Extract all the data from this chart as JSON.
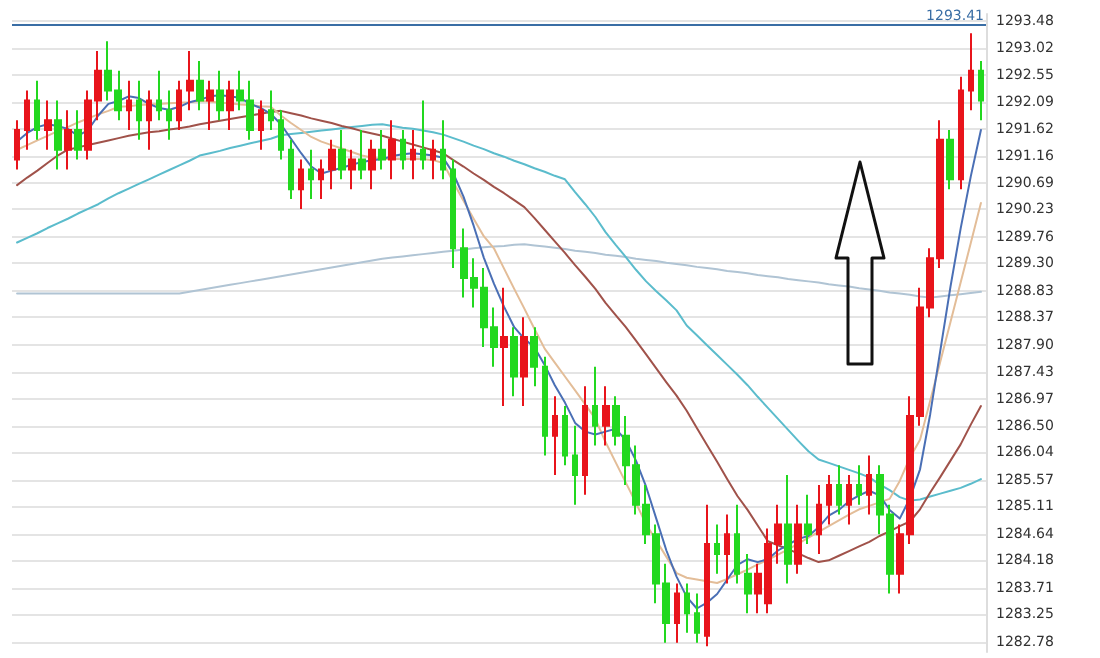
{
  "chart_data": {
    "type": "candlestick",
    "categories": [
      null,
      null,
      null,
      null,
      null,
      null,
      null,
      null,
      null,
      null,
      null,
      null,
      null,
      null,
      null,
      null,
      null,
      null,
      null,
      null,
      null,
      null,
      null,
      null,
      null,
      null,
      null,
      null,
      null,
      null,
      null,
      null,
      null,
      null,
      null,
      null,
      null,
      null,
      null,
      null,
      null,
      null,
      null,
      null,
      null,
      null,
      null,
      null,
      null,
      null,
      null,
      null,
      null,
      null,
      null,
      null,
      null,
      null,
      null,
      null,
      null,
      null,
      null,
      null,
      null,
      null,
      null,
      null,
      null,
      null,
      null,
      null,
      null,
      null,
      null,
      null,
      null,
      null,
      null,
      null,
      null,
      null,
      null,
      null,
      null,
      null,
      null,
      null,
      null,
      null,
      null,
      null,
      null,
      null,
      null,
      null
    ],
    "ylim": [
      1282.6,
      1293.6
    ],
    "yticks": [
      1282.78,
      1283.25,
      1283.71,
      1284.18,
      1284.64,
      1285.11,
      1285.57,
      1286.04,
      {
        "value": 1286.5,
        "label": "1286.50"
      },
      1286.97,
      1287.43,
      {
        "value": 1287.9,
        "label": "1287.90"
      },
      1288.37,
      1288.83,
      {
        "value": 1289.3,
        "label": "1289.30"
      },
      1289.76,
      1290.23,
      1290.69,
      1291.16,
      1291.62,
      1292.09,
      1292.55,
      1293.02,
      1293.48
    ],
    "grid": "y",
    "tick_labels": "y",
    "line_style": "solid",
    "ohlc": [
      [
        1291.09,
        1291.77,
        1290.92,
        1291.6
      ],
      [
        1291.6,
        1292.28,
        1291.26,
        1292.11
      ],
      [
        1292.11,
        1292.45,
        1291.43,
        1291.6
      ],
      [
        1291.6,
        1292.11,
        1291.26,
        1291.77
      ],
      [
        1291.77,
        1292.11,
        1290.92,
        1291.26
      ],
      [
        1291.26,
        1291.94,
        1290.92,
        1291.6
      ],
      [
        1291.6,
        1291.94,
        1291.09,
        1291.26
      ],
      [
        1291.26,
        1292.28,
        1291.09,
        1292.11
      ],
      [
        1292.11,
        1292.96,
        1291.77,
        1292.62
      ],
      [
        1292.62,
        1293.13,
        1292.11,
        1292.28
      ],
      [
        1292.28,
        1292.62,
        1291.77,
        1291.94
      ],
      [
        1291.94,
        1292.45,
        1291.6,
        1292.11
      ],
      [
        1292.11,
        1292.45,
        1291.43,
        1291.77
      ],
      [
        1291.77,
        1292.28,
        1291.26,
        1292.11
      ],
      [
        1292.11,
        1292.62,
        1291.77,
        1291.94
      ],
      [
        1291.94,
        1292.28,
        1291.43,
        1291.77
      ],
      [
        1291.77,
        1292.45,
        1291.6,
        1292.28
      ],
      [
        1292.28,
        1292.96,
        1291.94,
        1292.45
      ],
      [
        1292.45,
        1292.79,
        1291.94,
        1292.11
      ],
      [
        1292.11,
        1292.45,
        1291.6,
        1292.28
      ],
      [
        1292.28,
        1292.62,
        1291.77,
        1291.94
      ],
      [
        1291.94,
        1292.45,
        1291.6,
        1292.28
      ],
      [
        1292.28,
        1292.62,
        1291.94,
        1292.11
      ],
      [
        1292.11,
        1292.45,
        1291.43,
        1291.6
      ],
      [
        1291.6,
        1292.11,
        1291.26,
        1291.94
      ],
      [
        1291.94,
        1292.28,
        1291.6,
        1291.77
      ],
      [
        1291.77,
        1291.94,
        1291.09,
        1291.26
      ],
      [
        1291.26,
        1291.43,
        1290.41,
        1290.58
      ],
      [
        1290.58,
        1291.09,
        1290.24,
        1290.92
      ],
      [
        1290.92,
        1291.26,
        1290.41,
        1290.75
      ],
      [
        1290.75,
        1291.09,
        1290.41,
        1290.92
      ],
      [
        1290.92,
        1291.43,
        1290.58,
        1291.26
      ],
      [
        1291.26,
        1291.6,
        1290.75,
        1290.92
      ],
      [
        1290.92,
        1291.26,
        1290.58,
        1291.09
      ],
      [
        1291.09,
        1291.6,
        1290.75,
        1290.92
      ],
      [
        1290.92,
        1291.43,
        1290.58,
        1291.26
      ],
      [
        1291.26,
        1291.6,
        1290.92,
        1291.09
      ],
      [
        1291.09,
        1291.77,
        1290.75,
        1291.43
      ],
      [
        1291.43,
        1291.6,
        1290.92,
        1291.09
      ],
      [
        1291.09,
        1291.6,
        1290.75,
        1291.26
      ],
      [
        1291.26,
        1292.11,
        1290.92,
        1291.09
      ],
      [
        1291.09,
        1291.43,
        1290.75,
        1291.26
      ],
      [
        1291.26,
        1291.77,
        1290.75,
        1290.92
      ],
      [
        1290.92,
        1291.09,
        1289.22,
        1289.56
      ],
      [
        1289.56,
        1289.9,
        1288.71,
        1289.05
      ],
      [
        1289.05,
        1289.39,
        1288.54,
        1288.88
      ],
      [
        1288.88,
        1289.22,
        1287.86,
        1288.2
      ],
      [
        1288.2,
        1288.54,
        1287.52,
        1287.86
      ],
      [
        1287.86,
        1288.88,
        1286.84,
        1288.03
      ],
      [
        1288.03,
        1288.2,
        1287.01,
        1287.35
      ],
      [
        1287.35,
        1288.37,
        1286.84,
        1288.03
      ],
      [
        1288.03,
        1288.2,
        1287.18,
        1287.52
      ],
      [
        1287.52,
        1287.69,
        1285.99,
        1286.33
      ],
      [
        1286.33,
        1287.01,
        1285.65,
        1286.67
      ],
      [
        1286.67,
        1286.84,
        1285.82,
        1285.99
      ],
      [
        1285.99,
        1286.5,
        1285.14,
        1285.65
      ],
      [
        1285.65,
        1287.18,
        1285.31,
        1286.84
      ],
      [
        1286.84,
        1287.52,
        1286.16,
        1286.5
      ],
      [
        1286.5,
        1287.18,
        1286.16,
        1286.84
      ],
      [
        1286.84,
        1287.01,
        1286.16,
        1286.33
      ],
      [
        1286.33,
        1286.67,
        1285.48,
        1285.82
      ],
      [
        1285.82,
        1286.16,
        1284.97,
        1285.14
      ],
      [
        1285.14,
        1285.48,
        1284.46,
        1284.63
      ],
      [
        1284.63,
        1284.8,
        1283.44,
        1283.78
      ],
      [
        1283.78,
        1284.12,
        1282.76,
        1283.1
      ],
      [
        1283.1,
        1283.78,
        1282.76,
        1283.61
      ],
      [
        1283.61,
        1283.78,
        1282.93,
        1283.27
      ],
      [
        1283.27,
        1283.61,
        1282.76,
        1282.93
      ],
      [
        1282.88,
        1285.14,
        1282.7,
        1284.46
      ],
      [
        1284.46,
        1284.8,
        1283.95,
        1284.29
      ],
      [
        1284.29,
        1284.97,
        1283.78,
        1284.63
      ],
      [
        1284.63,
        1285.14,
        1283.78,
        1283.95
      ],
      [
        1283.95,
        1284.29,
        1283.27,
        1283.61
      ],
      [
        1283.61,
        1284.12,
        1283.27,
        1283.95
      ],
      [
        1283.44,
        1284.73,
        1283.27,
        1284.46
      ],
      [
        1284.46,
        1285.14,
        1284.12,
        1284.8
      ],
      [
        1284.8,
        1285.65,
        1283.78,
        1284.12
      ],
      [
        1284.12,
        1285.14,
        1283.95,
        1284.8
      ],
      [
        1284.8,
        1285.31,
        1284.46,
        1284.63
      ],
      [
        1284.63,
        1285.48,
        1284.29,
        1285.14
      ],
      [
        1285.14,
        1285.65,
        1284.8,
        1285.48
      ],
      [
        1285.48,
        1285.82,
        1284.97,
        1285.14
      ],
      [
        1285.14,
        1285.65,
        1284.8,
        1285.48
      ],
      [
        1285.48,
        1285.82,
        1285.14,
        1285.31
      ],
      [
        1285.31,
        1285.99,
        1284.97,
        1285.65
      ],
      [
        1285.65,
        1285.82,
        1284.63,
        1284.97
      ],
      [
        1284.97,
        1285.14,
        1283.61,
        1283.95
      ],
      [
        1283.95,
        1284.8,
        1283.61,
        1284.63
      ],
      [
        1284.63,
        1287.01,
        1284.46,
        1286.67
      ],
      [
        1286.67,
        1288.88,
        1286.5,
        1288.54
      ],
      [
        1288.54,
        1289.56,
        1288.37,
        1289.39
      ],
      [
        1289.39,
        1291.77,
        1289.22,
        1291.43
      ],
      [
        1291.43,
        1291.6,
        1290.58,
        1290.75
      ],
      [
        1290.75,
        1292.52,
        1290.58,
        1292.28
      ],
      [
        1292.28,
        1293.27,
        1291.94,
        1292.62
      ],
      [
        1292.62,
        1292.79,
        1291.77,
        1292.11
      ]
    ],
    "colors": [
      "#e8141b",
      "#e8141b",
      "#22d81f",
      "#e8141b",
      "#22d81f",
      "#e8141b",
      "#22d81f",
      "#e8141b",
      "#e8141b",
      "#22d81f",
      "#22d81f",
      "#e8141b",
      "#22d81f",
      "#e8141b",
      "#22d81f",
      "#22d81f",
      "#e8141b",
      "#e8141b",
      "#22d81f",
      "#e8141b",
      "#22d81f",
      "#e8141b",
      "#22d81f",
      "#22d81f",
      "#e8141b",
      "#22d81f",
      "#22d81f",
      "#22d81f",
      "#e8141b",
      "#22d81f",
      "#e8141b",
      "#e8141b",
      "#22d81f",
      "#e8141b",
      "#22d81f",
      "#e8141b",
      "#22d81f",
      "#e8141b",
      "#22d81f",
      "#e8141b",
      "#22d81f",
      "#e8141b",
      "#22d81f",
      "#22d81f",
      "#22d81f",
      "#22d81f",
      "#22d81f",
      "#22d81f",
      "#e8141b",
      "#22d81f",
      "#e8141b",
      "#22d81f",
      "#22d81f",
      "#e8141b",
      "#22d81f",
      "#22d81f",
      "#e8141b",
      "#22d81f",
      "#e8141b",
      "#22d81f",
      "#22d81f",
      "#22d81f",
      "#22d81f",
      "#22d81f",
      "#22d81f",
      "#e8141b",
      "#22d81f",
      "#22d81f",
      "#e8141b",
      "#22d81f",
      "#e8141b",
      "#22d81f",
      "#22d81f",
      "#e8141b",
      "#e8141b",
      "#e8141b",
      "#22d81f",
      "#e8141b",
      "#22d81f",
      "#e8141b",
      "#e8141b",
      "#22d81f",
      "#e8141b",
      "#22d81f",
      "#e8141b",
      "#22d81f",
      "#22d81f",
      "#e8141b",
      "#e8141b",
      "#e8141b",
      "#e8141b",
      "#e8141b",
      "#22d81f",
      "#e8141b",
      "#e8141b",
      "#22d81f"
    ],
    "series": [
      {
        "type": "line",
        "color": "#b0c4d4",
        "values": [
          1288.78,
          1288.78,
          1288.78,
          1288.78,
          1288.78,
          1288.78,
          1288.78,
          1288.78,
          1288.78,
          1288.78,
          1288.78,
          1288.78,
          1288.78,
          1288.78,
          1288.78,
          1288.78,
          1288.78,
          1288.81,
          1288.84,
          1288.87,
          1288.9,
          1288.93,
          1288.96,
          1288.99,
          1289.02,
          1289.05,
          1289.08,
          1289.11,
          1289.14,
          1289.17,
          1289.2,
          1289.23,
          1289.26,
          1289.29,
          1289.32,
          1289.35,
          1289.38,
          1289.4,
          1289.42,
          1289.44,
          1289.46,
          1289.48,
          1289.5,
          1289.52,
          1289.54,
          1289.56,
          1289.58,
          1289.59,
          1289.6,
          1289.62,
          1289.63,
          1289.61,
          1289.59,
          1289.57,
          1289.55,
          1289.52,
          1289.5,
          1289.48,
          1289.45,
          1289.43,
          1289.41,
          1289.38,
          1289.36,
          1289.34,
          1289.31,
          1289.29,
          1289.27,
          1289.24,
          1289.22,
          1289.2,
          1289.17,
          1289.15,
          1289.13,
          1289.1,
          1289.08,
          1289.06,
          1289.03,
          1289.01,
          1288.99,
          1288.97,
          1288.94,
          1288.92,
          1288.9,
          1288.87,
          1288.85,
          1288.83,
          1288.8,
          1288.78,
          1288.76,
          1288.73,
          1288.71,
          1288.73,
          1288.75,
          1288.77,
          1288.79,
          1288.81
        ]
      },
      {
        "type": "line",
        "color": "#5bbccc",
        "values": [
          1289.66,
          1289.74,
          1289.82,
          1289.91,
          1289.99,
          1290.07,
          1290.16,
          1290.24,
          1290.32,
          1290.42,
          1290.51,
          1290.59,
          1290.67,
          1290.75,
          1290.83,
          1290.91,
          1290.99,
          1291.07,
          1291.16,
          1291.2,
          1291.24,
          1291.29,
          1291.33,
          1291.37,
          1291.41,
          1291.45,
          1291.51,
          1291.53,
          1291.55,
          1291.57,
          1291.59,
          1291.61,
          1291.63,
          1291.65,
          1291.67,
          1291.69,
          1291.7,
          1291.67,
          1291.64,
          1291.62,
          1291.59,
          1291.56,
          1291.52,
          1291.46,
          1291.4,
          1291.33,
          1291.27,
          1291.2,
          1291.14,
          1291.07,
          1291.01,
          1290.94,
          1290.88,
          1290.81,
          1290.75,
          1290.53,
          1290.32,
          1290.1,
          1289.84,
          1289.62,
          1289.41,
          1289.19,
          1288.99,
          1288.82,
          1288.66,
          1288.49,
          1288.23,
          1288.06,
          1287.89,
          1287.72,
          1287.55,
          1287.38,
          1287.2,
          1287.0,
          1286.81,
          1286.62,
          1286.43,
          1286.24,
          1286.06,
          1285.92,
          1285.86,
          1285.8,
          1285.74,
          1285.68,
          1285.61,
          1285.49,
          1285.39,
          1285.27,
          1285.21,
          1285.23,
          1285.28,
          1285.33,
          1285.38,
          1285.43,
          1285.5,
          1285.58
        ]
      },
      {
        "type": "line",
        "color": "#a0524a",
        "values": [
          1290.65,
          1290.78,
          1290.9,
          1291.03,
          1291.16,
          1291.26,
          1291.3,
          1291.34,
          1291.38,
          1291.42,
          1291.46,
          1291.5,
          1291.53,
          1291.56,
          1291.58,
          1291.61,
          1291.63,
          1291.66,
          1291.7,
          1291.73,
          1291.76,
          1291.79,
          1291.82,
          1291.85,
          1291.88,
          1291.91,
          1291.93,
          1291.89,
          1291.85,
          1291.8,
          1291.76,
          1291.72,
          1291.67,
          1291.63,
          1291.58,
          1291.54,
          1291.5,
          1291.45,
          1291.4,
          1291.35,
          1291.3,
          1291.25,
          1291.2,
          1291.08,
          1290.97,
          1290.85,
          1290.74,
          1290.62,
          1290.51,
          1290.39,
          1290.27,
          1290.08,
          1289.88,
          1289.68,
          1289.48,
          1289.27,
          1289.07,
          1288.86,
          1288.62,
          1288.41,
          1288.2,
          1287.97,
          1287.73,
          1287.49,
          1287.25,
          1287.02,
          1286.76,
          1286.46,
          1286.17,
          1285.88,
          1285.58,
          1285.29,
          1285.05,
          1284.78,
          1284.51,
          1284.44,
          1284.37,
          1284.3,
          1284.22,
          1284.15,
          1284.18,
          1284.26,
          1284.34,
          1284.42,
          1284.5,
          1284.6,
          1284.68,
          1284.77,
          1284.85,
          1285.06,
          1285.35,
          1285.62,
          1285.9,
          1286.18,
          1286.52,
          1286.84
        ]
      },
      {
        "type": "line",
        "color": "#e3bd98",
        "values": [
          1291.26,
          1291.34,
          1291.42,
          1291.5,
          1291.58,
          1291.65,
          1291.73,
          1291.8,
          1291.87,
          1291.93,
          1292.0,
          1292.01,
          1292.03,
          1292.04,
          1292.05,
          1292.06,
          1292.07,
          1292.08,
          1292.1,
          1292.09,
          1292.07,
          1292.06,
          1292.04,
          1292.03,
          1292.01,
          1292.0,
          1291.85,
          1291.72,
          1291.6,
          1291.48,
          1291.4,
          1291.34,
          1291.28,
          1291.22,
          1291.16,
          1291.12,
          1291.1,
          1291.1,
          1291.1,
          1291.1,
          1291.1,
          1291.08,
          1291.03,
          1290.7,
          1290.38,
          1290.07,
          1289.77,
          1289.56,
          1289.21,
          1288.86,
          1288.52,
          1288.17,
          1287.83,
          1287.59,
          1287.35,
          1287.11,
          1286.87,
          1286.62,
          1286.22,
          1285.87,
          1285.52,
          1285.17,
          1284.8,
          1284.52,
          1284.24,
          1283.96,
          1283.88,
          1283.85,
          1283.82,
          1283.79,
          1283.86,
          1283.94,
          1284.02,
          1284.11,
          1284.19,
          1284.28,
          1284.37,
          1284.47,
          1284.57,
          1284.67,
          1284.77,
          1284.87,
          1284.97,
          1285.06,
          1285.12,
          1285.18,
          1285.24,
          1285.55,
          1285.95,
          1286.26,
          1286.93,
          1287.61,
          1288.29,
          1288.97,
          1289.65,
          1290.34
        ]
      },
      {
        "type": "line",
        "color": "#4a6fb5",
        "values": [
          1291.4,
          1291.55,
          1291.65,
          1291.7,
          1291.67,
          1291.62,
          1291.5,
          1291.6,
          1291.85,
          1292.05,
          1292.1,
          1292.18,
          1292.15,
          1292.05,
          1291.98,
          1291.95,
          1292.0,
          1292.08,
          1292.12,
          1292.18,
          1292.2,
          1292.18,
          1292.15,
          1292.05,
          1291.98,
          1291.88,
          1291.7,
          1291.45,
          1291.2,
          1290.97,
          1290.85,
          1290.9,
          1290.95,
          1291.0,
          1291.05,
          1291.08,
          1291.1,
          1291.15,
          1291.18,
          1291.2,
          1291.18,
          1291.16,
          1291.12,
          1290.85,
          1290.45,
          1289.95,
          1289.4,
          1288.95,
          1288.55,
          1288.2,
          1288.0,
          1287.85,
          1287.55,
          1287.2,
          1286.9,
          1286.55,
          1286.4,
          1286.35,
          1286.4,
          1286.45,
          1286.25,
          1285.9,
          1285.45,
          1284.9,
          1284.35,
          1283.9,
          1283.55,
          1283.35,
          1283.45,
          1283.6,
          1283.85,
          1284.1,
          1284.2,
          1284.15,
          1284.2,
          1284.35,
          1284.45,
          1284.55,
          1284.6,
          1284.75,
          1284.95,
          1285.05,
          1285.2,
          1285.3,
          1285.38,
          1285.3,
          1285.05,
          1284.9,
          1285.25,
          1285.75,
          1286.7,
          1287.8,
          1288.9,
          1289.9,
          1290.8,
          1291.6
        ]
      }
    ],
    "ref_lines": [
      {
        "axis": "y",
        "value": 1293.41,
        "label": "1293.41",
        "color": "#3a6ea5"
      }
    ]
  }
}
